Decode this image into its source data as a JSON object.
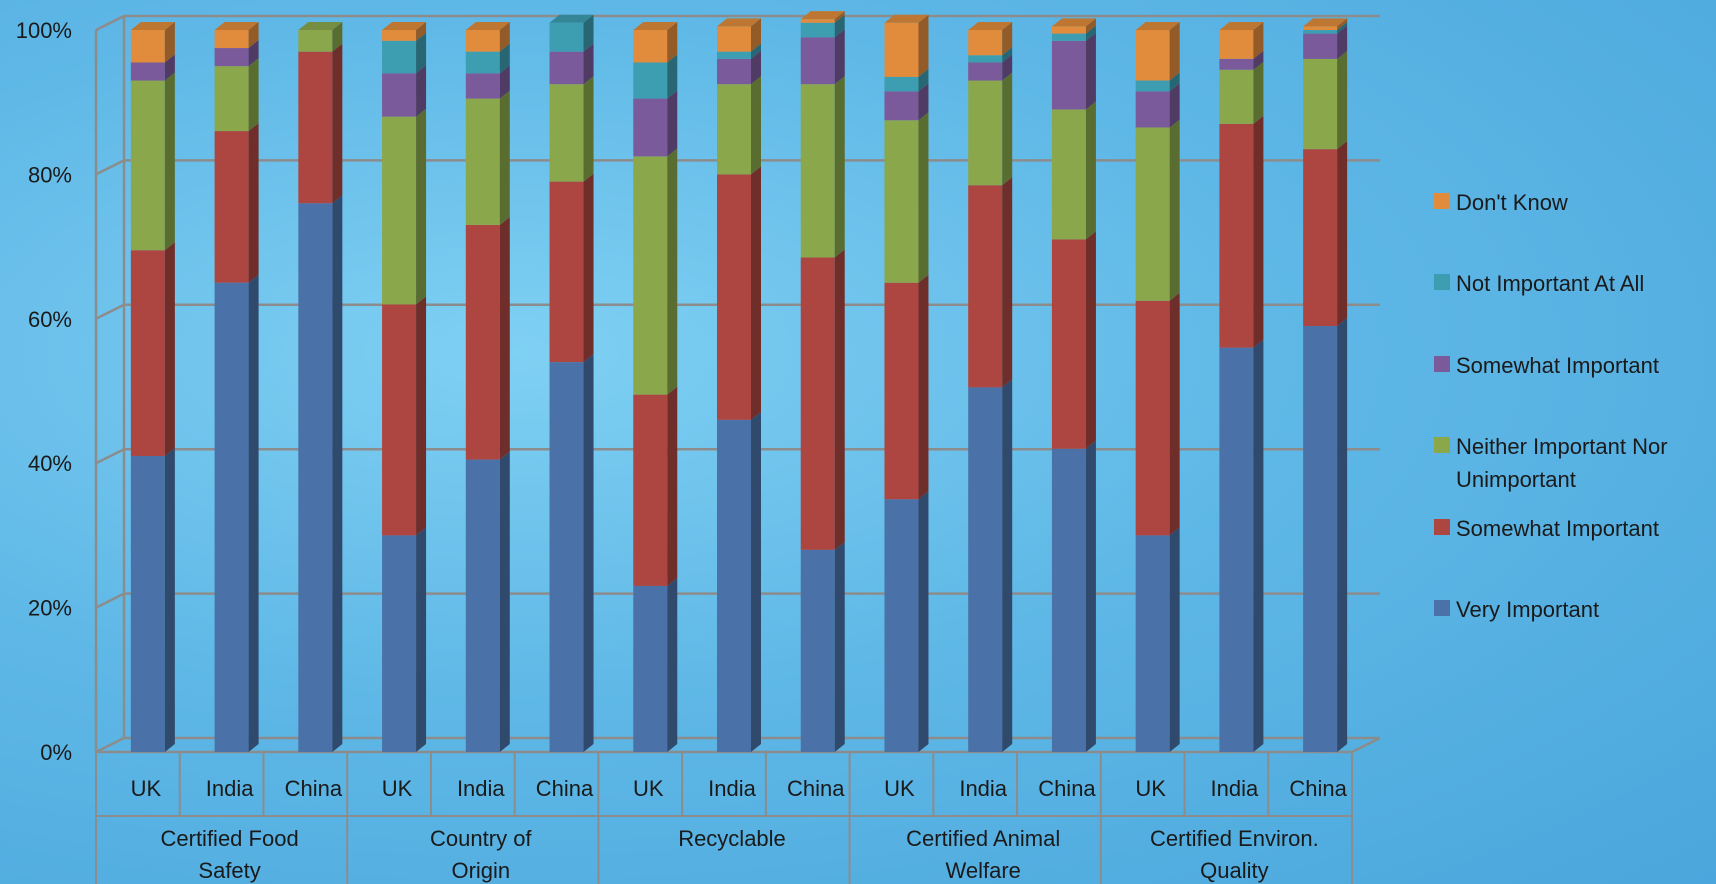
{
  "chart_data": {
    "type": "bar",
    "stacked": true,
    "three_d": true,
    "y_axis": {
      "ylim": [
        0,
        100
      ],
      "ticks": [
        "0%",
        "20%",
        "40%",
        "60%",
        "80%",
        "100%"
      ]
    },
    "grid": true,
    "legend_position": "right",
    "groups": [
      {
        "label": "Certified Food Safety",
        "categories": [
          "UK",
          "India",
          "China"
        ]
      },
      {
        "label": "Country of Origin",
        "categories": [
          "UK",
          "India",
          "China"
        ]
      },
      {
        "label": "Recyclable",
        "categories": [
          "UK",
          "India",
          "China"
        ]
      },
      {
        "label": "Certified Animal Welfare",
        "categories": [
          "UK",
          "India",
          "China"
        ]
      },
      {
        "label": "Certified Environ. Quality",
        "categories": [
          "UK",
          "India",
          "China"
        ]
      }
    ],
    "series": [
      {
        "name": "Very Important",
        "color": "#4a72a8",
        "values": [
          41,
          65,
          76,
          30,
          40.5,
          54,
          23,
          46,
          28,
          35,
          50.5,
          42,
          30,
          56,
          59
        ]
      },
      {
        "name": "Somewhat Important",
        "color": "#ad4641",
        "values": [
          28.5,
          21,
          21,
          32,
          32.5,
          25,
          26.5,
          34,
          40.5,
          30,
          28,
          29,
          32.5,
          31,
          24.5
        ]
      },
      {
        "name": "Neither Important Nor Unimportant",
        "color": "#8aa74c",
        "values": [
          23.5,
          9,
          3,
          26,
          17.5,
          13.5,
          33,
          12.5,
          24,
          22.5,
          14.5,
          18,
          24,
          7.5,
          12.5
        ]
      },
      {
        "name": "Somewhat Important",
        "color": "#7a5a9a",
        "values": [
          2.5,
          2.5,
          0,
          6,
          3.5,
          4.5,
          8,
          3.5,
          6.5,
          4,
          2.5,
          9.5,
          5,
          1.5,
          3.5
        ]
      },
      {
        "name": "Not Important At All",
        "color": "#3d9db1",
        "values": [
          0,
          0,
          0,
          4.5,
          3,
          4,
          5,
          1,
          2,
          2,
          1,
          1,
          1.5,
          0,
          0.5
        ]
      },
      {
        "name": "Don't Know",
        "color": "#e08c3c",
        "values": [
          4.5,
          2.5,
          0,
          1.5,
          3,
          0,
          4.5,
          3.5,
          0.5,
          7.5,
          3.5,
          1,
          7,
          4,
          0.5
        ]
      }
    ],
    "legend_order": [
      5,
      4,
      3,
      2,
      1,
      0
    ]
  }
}
